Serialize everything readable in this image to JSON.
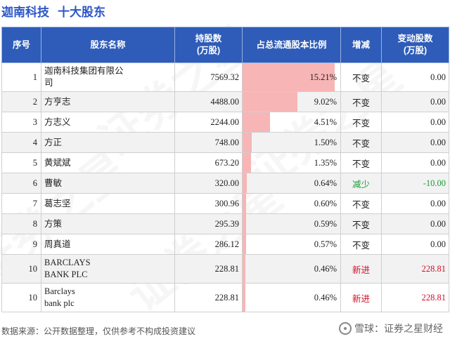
{
  "header": {
    "company": "迦南科技",
    "section": "十大股东"
  },
  "columns": {
    "idx": "序号",
    "name": "股东名称",
    "shares": "持股数\n(万股)",
    "ratio": "占总流通股本比例",
    "change": "增减",
    "delta": "变动股数\n(万股)"
  },
  "chart_data": {
    "type": "table",
    "bar_max_pct": 16.1,
    "rows": [
      {
        "idx": "1",
        "name": "迦南科技集团有限公\n司",
        "shares": "7569.32",
        "pct_value": 15.21,
        "pct": "15.21%",
        "change": "不变",
        "delta": "0.00",
        "tall": true
      },
      {
        "idx": "2",
        "name": "方亨志",
        "shares": "4488.00",
        "pct_value": 9.02,
        "pct": "9.02%",
        "change": "不变",
        "delta": "0.00"
      },
      {
        "idx": "3",
        "name": "方志义",
        "shares": "2244.00",
        "pct_value": 4.51,
        "pct": "4.51%",
        "change": "不变",
        "delta": "0.00"
      },
      {
        "idx": "4",
        "name": "方正",
        "shares": "748.00",
        "pct_value": 1.5,
        "pct": "1.50%",
        "change": "不变",
        "delta": "0.00"
      },
      {
        "idx": "5",
        "name": "黄斌斌",
        "shares": "673.20",
        "pct_value": 1.35,
        "pct": "1.35%",
        "change": "不变",
        "delta": "0.00"
      },
      {
        "idx": "6",
        "name": "曹敏",
        "shares": "320.00",
        "pct_value": 0.64,
        "pct": "0.64%",
        "change": "减少",
        "delta": "-10.00"
      },
      {
        "idx": "7",
        "name": "葛志坚",
        "shares": "300.96",
        "pct_value": 0.6,
        "pct": "0.60%",
        "change": "不变",
        "delta": "0.00"
      },
      {
        "idx": "8",
        "name": "方策",
        "shares": "295.39",
        "pct_value": 0.59,
        "pct": "0.59%",
        "change": "不变",
        "delta": "0.00"
      },
      {
        "idx": "9",
        "name": "周真道",
        "shares": "286.12",
        "pct_value": 0.57,
        "pct": "0.57%",
        "change": "不变",
        "delta": "0.00"
      },
      {
        "idx": "10",
        "name": "BARCLAYS\nBANK PLC",
        "shares": "228.81",
        "pct_value": 0.46,
        "pct": "0.46%",
        "change": "新进",
        "delta": "228.81",
        "tall": true
      },
      {
        "idx": "10",
        "name": "Barclays\nbank plc",
        "shares": "228.81",
        "pct_value": 0.46,
        "pct": "0.46%",
        "change": "新进",
        "delta": "228.81",
        "tall": true
      }
    ]
  },
  "colors": {
    "title": "#2b56c6",
    "header_bg": "#2e5cb8",
    "bar": "#f7b5b5",
    "unchanged": "#222222",
    "decrease": "#1a9b3a",
    "new": "#d0112b"
  },
  "watermark": "证券之星",
  "footer": {
    "source": "数据来源：公开数据整理，仅供参考不构成投资建议",
    "logo": "雪球：证券之星财经"
  }
}
